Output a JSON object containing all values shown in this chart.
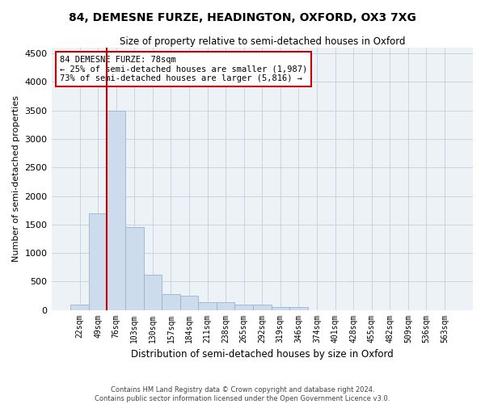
{
  "title": "84, DEMESNE FURZE, HEADINGTON, OXFORD, OX3 7XG",
  "subtitle": "Size of property relative to semi-detached houses in Oxford",
  "xlabel": "Distribution of semi-detached houses by size in Oxford",
  "ylabel": "Number of semi-detached properties",
  "footer_line1": "Contains HM Land Registry data © Crown copyright and database right 2024.",
  "footer_line2": "Contains public sector information licensed under the Open Government Licence v3.0.",
  "annotation_title": "84 DEMESNE FURZE: 78sqm",
  "annotation_line1": "← 25% of semi-detached houses are smaller (1,987)",
  "annotation_line2": "73% of semi-detached houses are larger (5,816) →",
  "bar_color": "#cddcec",
  "bar_edge_color": "#9ab4cc",
  "vline_color": "#cc0000",
  "annotation_box_edge": "#cc0000",
  "grid_color": "#c8d4e0",
  "bg_color": "#edf2f7",
  "categories": [
    "22sqm",
    "49sqm",
    "76sqm",
    "103sqm",
    "130sqm",
    "157sqm",
    "184sqm",
    "211sqm",
    "238sqm",
    "265sqm",
    "292sqm",
    "319sqm",
    "346sqm",
    "374sqm",
    "401sqm",
    "428sqm",
    "455sqm",
    "482sqm",
    "509sqm",
    "536sqm",
    "563sqm"
  ],
  "bar_heights": [
    90,
    1700,
    3500,
    1450,
    620,
    280,
    250,
    130,
    130,
    100,
    95,
    50,
    50,
    0,
    0,
    0,
    0,
    0,
    0,
    0,
    0
  ],
  "ylim": [
    0,
    4600
  ],
  "yticks": [
    0,
    500,
    1000,
    1500,
    2000,
    2500,
    3000,
    3500,
    4000,
    4500
  ],
  "vline_x_index": 1.5,
  "fig_width": 6.0,
  "fig_height": 5.0,
  "dpi": 100
}
